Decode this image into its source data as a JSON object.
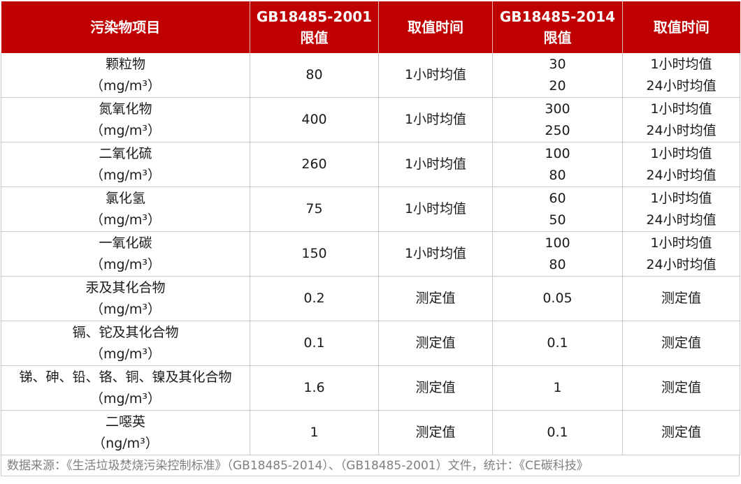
{
  "table": {
    "headers": [
      [
        "污染物项目"
      ],
      [
        "GB18485-2001",
        "限值"
      ],
      [
        "取值时间"
      ],
      [
        "GB18485-2014",
        "限值"
      ],
      [
        "取值时间"
      ]
    ],
    "rows": [
      {
        "pollutant": [
          "颗粒物",
          "（mg/m³）"
        ],
        "limit_2001": "80",
        "time_2001": "1小时均值",
        "limit_2014": [
          "30",
          "20"
        ],
        "time_2014": [
          "1小时均值",
          "24小时均值"
        ]
      },
      {
        "pollutant": [
          "氮氧化物",
          "（mg/m³）"
        ],
        "limit_2001": "400",
        "time_2001": "1小时均值",
        "limit_2014": [
          "300",
          "250"
        ],
        "time_2014": [
          "1小时均值",
          "24小时均值"
        ]
      },
      {
        "pollutant": [
          "二氧化硫",
          "（mg/m³）"
        ],
        "limit_2001": "260",
        "time_2001": "1小时均值",
        "limit_2014": [
          "100",
          "80"
        ],
        "time_2014": [
          "1小时均值",
          "24小时均值"
        ]
      },
      {
        "pollutant": [
          "氯化氢",
          "（mg/m³）"
        ],
        "limit_2001": "75",
        "time_2001": "1小时均值",
        "limit_2014": [
          "60",
          "50"
        ],
        "time_2014": [
          "1小时均值",
          "24小时均值"
        ]
      },
      {
        "pollutant": [
          "一氧化碳",
          "（mg/m³）"
        ],
        "limit_2001": "150",
        "time_2001": "1小时均值",
        "limit_2014": [
          "100",
          "80"
        ],
        "time_2014": [
          "1小时均值",
          "24小时均值"
        ]
      },
      {
        "pollutant": [
          "汞及其化合物",
          "（mg/m³）"
        ],
        "limit_2001": "0.2",
        "time_2001": "测定值",
        "limit_2014": [
          "0.05"
        ],
        "time_2014": [
          "测定值"
        ]
      },
      {
        "pollutant": [
          "镉、铊及其化合物",
          "（mg/m³）"
        ],
        "limit_2001": "0.1",
        "time_2001": "测定值",
        "limit_2014": [
          "0.1"
        ],
        "time_2014": [
          "测定值"
        ]
      },
      {
        "pollutant": [
          "锑、砷、铅、铬、铜、镍及其化合物",
          "（mg/m³）"
        ],
        "limit_2001": "1.6",
        "time_2001": "测定值",
        "limit_2014": [
          "1"
        ],
        "time_2014": [
          "测定值"
        ]
      },
      {
        "pollutant": [
          "二噁英",
          "（ng/m³）"
        ],
        "limit_2001": "1",
        "time_2001": "测定值",
        "limit_2014": [
          "0.1"
        ],
        "time_2014": [
          "测定值"
        ]
      }
    ]
  },
  "source": "数据来源：《生活垃圾焚烧污染控制标准》（GB18485-2014）、（GB18485-2001）文件，统计：《CE碳科技》",
  "colors": {
    "header_bg": "#c00000",
    "header_text": "#ffffff",
    "border": "#c9c9c9",
    "source_text": "#7f7f7f"
  }
}
